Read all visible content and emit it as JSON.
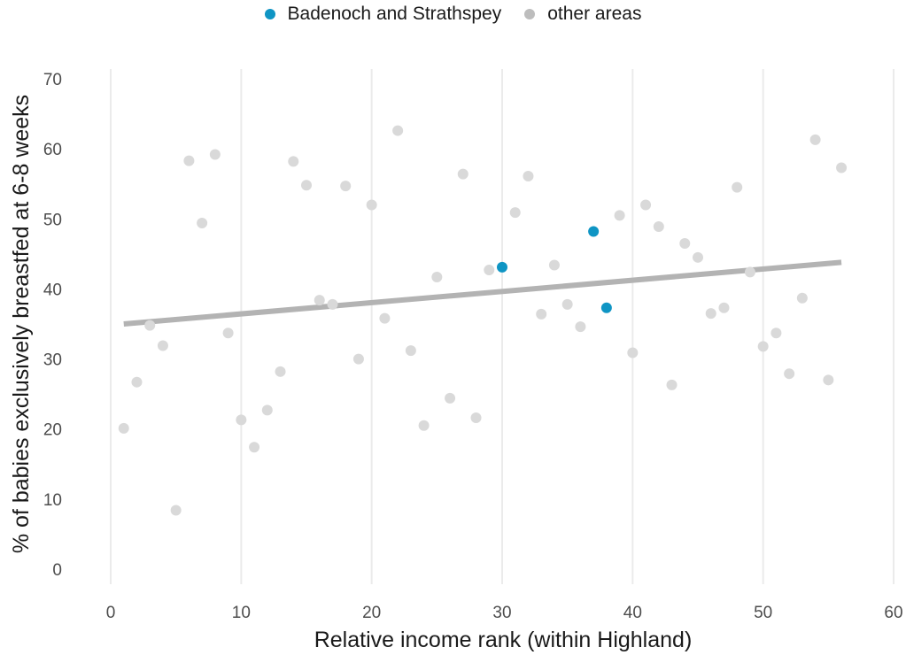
{
  "chart_data": {
    "type": "scatter",
    "xlabel": "Relative income rank (within Highland)",
    "ylabel": "% of babies exclusively breastfed at 6-8 weeks",
    "xlim": [
      0,
      60
    ],
    "ylim": [
      0,
      70
    ],
    "x_ticks": [
      0,
      10,
      20,
      30,
      40,
      50,
      60
    ],
    "y_ticks": [
      0,
      10,
      20,
      30,
      40,
      50,
      60,
      70
    ],
    "grid": "vertical",
    "legend_position": "top",
    "legend": [
      {
        "name": "Badenoch and Strathspey",
        "color": "#0F95C4"
      },
      {
        "name": "other areas",
        "color": "#BDBDBD"
      }
    ],
    "trend_line": {
      "x": [
        1,
        56
      ],
      "y": [
        35.0,
        43.8
      ],
      "color": "#B3B3B3"
    },
    "series": [
      {
        "name": "other areas",
        "color": "#D9D9D9",
        "points": [
          [
            1,
            20.1
          ],
          [
            2,
            26.7
          ],
          [
            3,
            34.8
          ],
          [
            4,
            31.9
          ],
          [
            5,
            8.4
          ],
          [
            6,
            58.3
          ],
          [
            7,
            49.4
          ],
          [
            8,
            59.2
          ],
          [
            9,
            33.7
          ],
          [
            10,
            21.3
          ],
          [
            11,
            17.4
          ],
          [
            12,
            22.7
          ],
          [
            13,
            28.2
          ],
          [
            14,
            58.2
          ],
          [
            15,
            54.8
          ],
          [
            16,
            38.4
          ],
          [
            17,
            37.8
          ],
          [
            18,
            54.7
          ],
          [
            19,
            30.0
          ],
          [
            20,
            52.0
          ],
          [
            21,
            35.8
          ],
          [
            22,
            62.6
          ],
          [
            23,
            31.2
          ],
          [
            24,
            20.5
          ],
          [
            25,
            41.7
          ],
          [
            26,
            24.4
          ],
          [
            27,
            56.4
          ],
          [
            28,
            21.6
          ],
          [
            29,
            42.7
          ],
          [
            31,
            50.9
          ],
          [
            32,
            56.1
          ],
          [
            33,
            36.4
          ],
          [
            34,
            43.4
          ],
          [
            35,
            37.8
          ],
          [
            36,
            34.6
          ],
          [
            39,
            50.5
          ],
          [
            40,
            30.9
          ],
          [
            41,
            52.0
          ],
          [
            42,
            48.9
          ],
          [
            43,
            26.3
          ],
          [
            44,
            46.5
          ],
          [
            45,
            44.5
          ],
          [
            46,
            36.5
          ],
          [
            47,
            37.3
          ],
          [
            48,
            54.5
          ],
          [
            49,
            42.4
          ],
          [
            50,
            31.8
          ],
          [
            51,
            33.7
          ],
          [
            52,
            27.9
          ],
          [
            53,
            38.7
          ],
          [
            54,
            61.3
          ],
          [
            55,
            27.0
          ],
          [
            56,
            57.3
          ]
        ]
      },
      {
        "name": "Badenoch and Strathspey",
        "color": "#0F95C4",
        "points": [
          [
            30,
            43.1
          ],
          [
            37,
            48.2
          ],
          [
            38,
            37.3
          ]
        ]
      }
    ]
  }
}
